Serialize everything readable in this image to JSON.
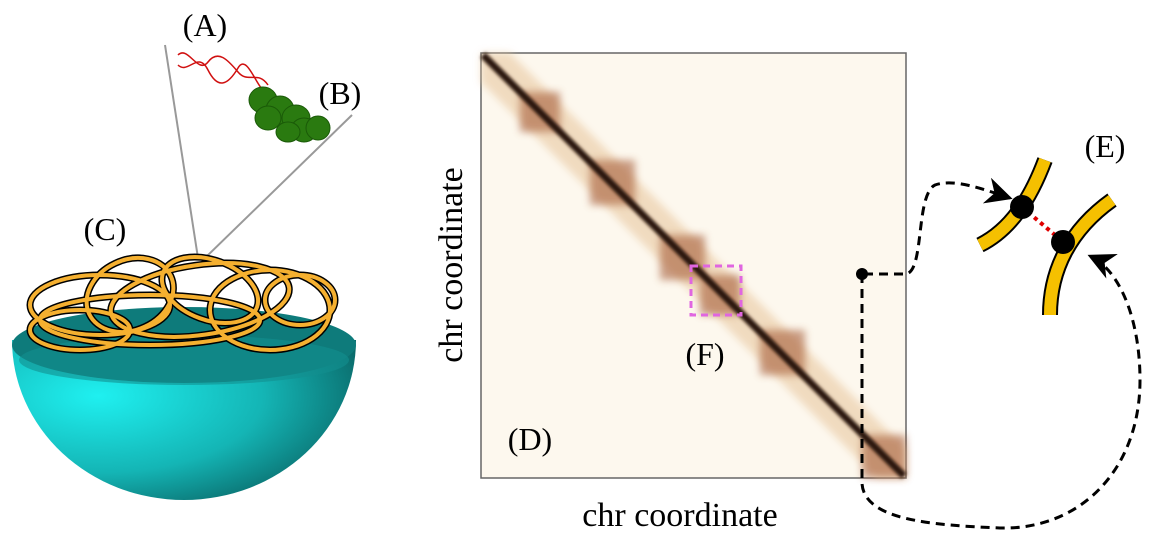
{
  "labels": [
    "(A)",
    "(B)",
    "(C)",
    "(D)",
    "(E)",
    "(F)"
  ],
  "axes": {
    "x_label": "chr coordinate",
    "y_label": "chr coordinate"
  }
}
